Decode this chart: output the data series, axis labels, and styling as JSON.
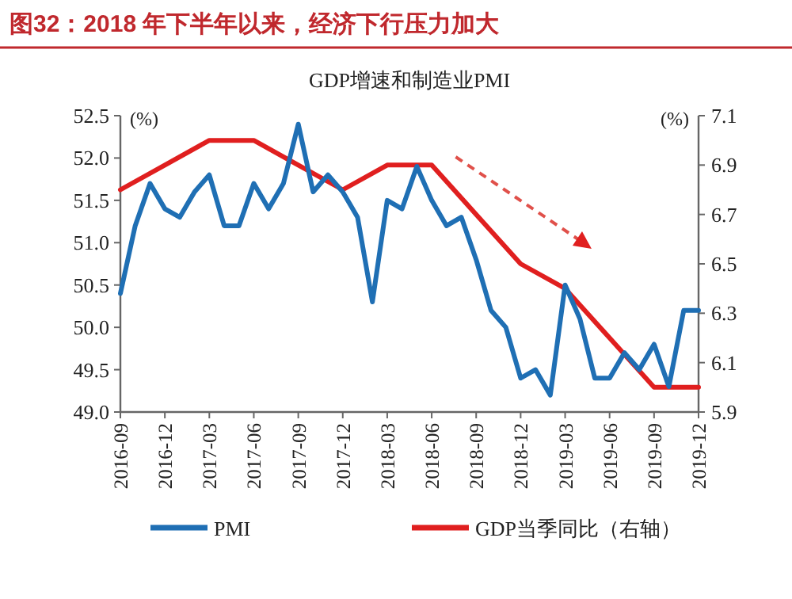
{
  "chart_data": {
    "type": "line",
    "title": "图32：2018 年下半年以来，经济下行压力加大",
    "subtitle": "GDP增速和制造业PMI",
    "ylabel": "(%)",
    "y2label": "(%)",
    "xlim": [
      "2016-09",
      "2019-12"
    ],
    "xticks": [
      "2016-09",
      "2016-12",
      "2017-03",
      "2017-06",
      "2017-09",
      "2017-12",
      "2018-03",
      "2018-06",
      "2018-09",
      "2018-12",
      "2019-03",
      "2019-06",
      "2019-09",
      "2019-12"
    ],
    "ylim": [
      49.0,
      52.5
    ],
    "yticks": [
      {
        "value": 49.0,
        "label": "49.0"
      },
      {
        "value": 49.5,
        "label": "49.5"
      },
      {
        "value": 50.0,
        "label": "50.0"
      },
      {
        "value": 50.5,
        "label": "50.5"
      },
      {
        "value": 51.0,
        "label": "51.0"
      },
      {
        "value": 51.5,
        "label": "51.5"
      },
      {
        "value": 52.0,
        "label": "52.0"
      },
      {
        "value": 52.5,
        "label": "52.5"
      }
    ],
    "y2lim": [
      5.9,
      7.1
    ],
    "y2ticks": [
      5.9,
      6.1,
      6.3,
      6.5,
      6.7,
      6.9,
      7.1
    ],
    "grid": false,
    "legend": "bottom",
    "marker": "none",
    "line_style": "solid",
    "series": [
      {
        "name": "PMI",
        "color": "#1f6fb4",
        "x": [
          "2016-09",
          "2016-10",
          "2016-11",
          "2016-12",
          "2017-01",
          "2017-02",
          "2017-03",
          "2017-04",
          "2017-05",
          "2017-06",
          "2017-07",
          "2017-08",
          "2017-09",
          "2017-10",
          "2017-11",
          "2017-12",
          "2018-01",
          "2018-02",
          "2018-03",
          "2018-04",
          "2018-05",
          "2018-06",
          "2018-07",
          "2018-08",
          "2018-09",
          "2018-10",
          "2018-11",
          "2018-12",
          "2019-01",
          "2019-02",
          "2019-03",
          "2019-04",
          "2019-05",
          "2019-06",
          "2019-07",
          "2019-08",
          "2019-09",
          "2019-10",
          "2019-11",
          "2019-12"
        ],
        "values": [
          50.4,
          51.2,
          51.7,
          51.4,
          51.3,
          51.6,
          51.8,
          51.2,
          51.2,
          51.7,
          51.4,
          51.7,
          52.4,
          51.6,
          51.8,
          51.6,
          51.3,
          50.3,
          51.5,
          51.4,
          51.9,
          51.5,
          51.2,
          51.3,
          50.8,
          50.2,
          50.0,
          49.4,
          49.5,
          49.2,
          50.5,
          50.1,
          49.4,
          49.4,
          49.7,
          49.5,
          49.8,
          49.3,
          50.2,
          50.2
        ]
      },
      {
        "name": "GDP当季同比（右轴）",
        "color": "#e01f1f",
        "axis": "y2",
        "x": [
          "2016-09",
          "2016-12",
          "2017-03",
          "2017-06",
          "2017-09",
          "2017-12",
          "2018-03",
          "2018-06",
          "2018-09",
          "2018-12",
          "2019-03",
          "2019-06",
          "2019-09",
          "2019-12"
        ],
        "values": [
          6.8,
          6.9,
          7.0,
          7.0,
          6.9,
          6.8,
          6.9,
          6.9,
          6.7,
          6.5,
          6.4,
          6.2,
          6.0,
          6.0
        ]
      }
    ]
  }
}
